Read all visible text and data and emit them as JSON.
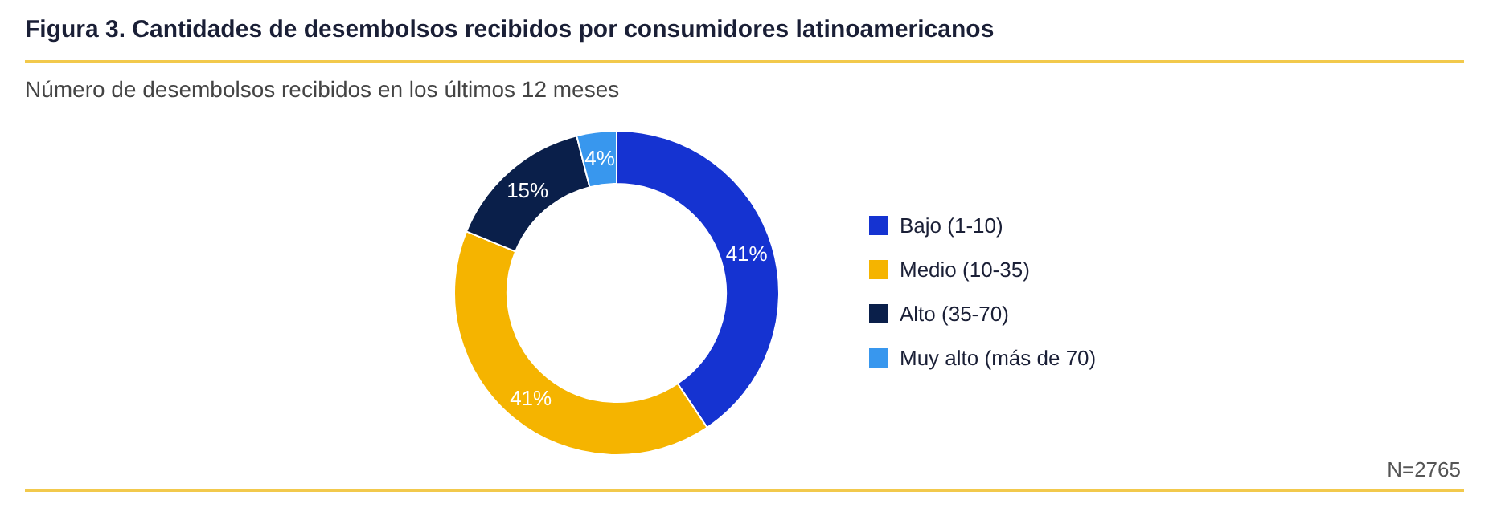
{
  "chart_data": {
    "type": "donut",
    "title": "Figura 3. Cantidades de desembolsos recibidos por  consumidores latinoamericanos",
    "subtitle": "Número de desembolsos recibidos en los últimos 12 meses",
    "categories": [
      "Bajo (1-10)",
      "Medio (10-35)",
      "Alto (35-70)",
      "Muy alto (más de 70)"
    ],
    "values": [
      41,
      41,
      15,
      4
    ],
    "colors": [
      "#1533d1",
      "#f5b400",
      "#0a1f4a",
      "#3897ee"
    ],
    "value_labels": [
      "41%",
      "41%",
      "15%",
      "4%"
    ],
    "legend": "right",
    "annotations": [
      "N=2765"
    ]
  }
}
